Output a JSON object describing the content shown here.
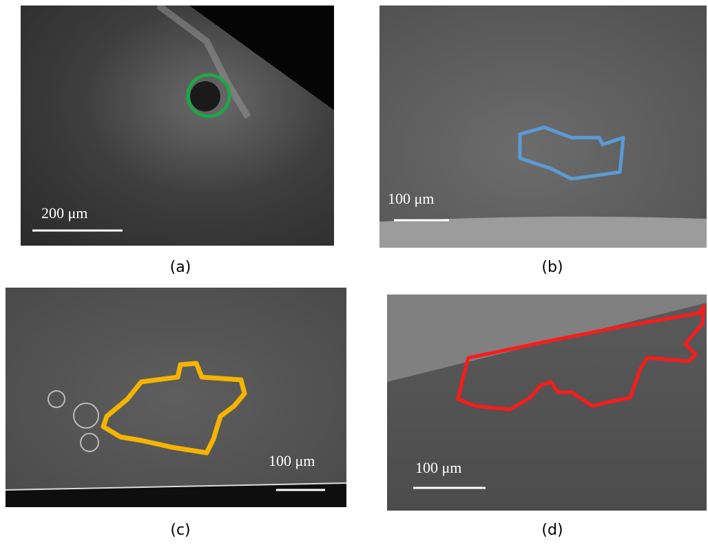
{
  "panels": [
    {
      "label": "(a)",
      "scale_bar": "200 μm"
    },
    {
      "label": "(b)",
      "scale_bar": "100 μm"
    },
    {
      "label": "(c)",
      "scale_bar": "100 μm"
    },
    {
      "label": "(d)",
      "scale_bar": "100 μm"
    }
  ]
}
